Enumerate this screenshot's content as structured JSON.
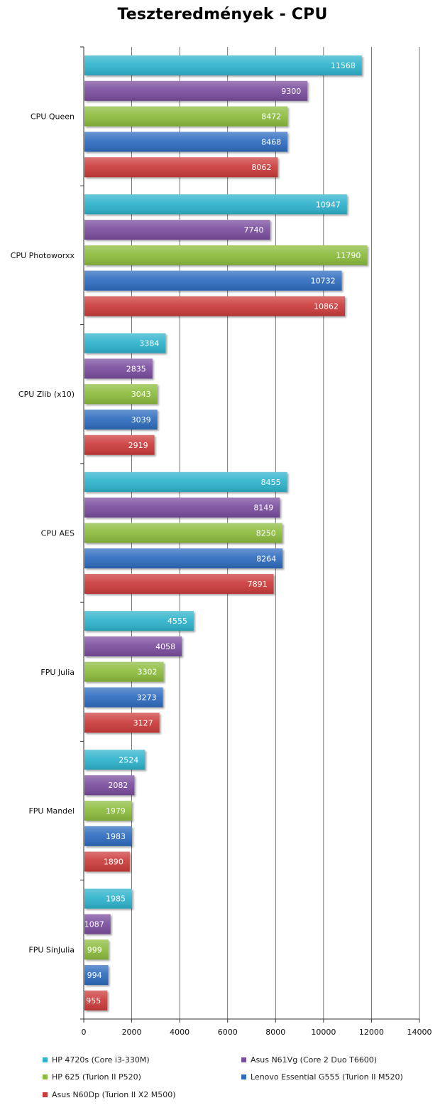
{
  "chart_data": {
    "type": "bar",
    "orientation": "horizontal",
    "title": "Teszteredmények - CPU",
    "categories": [
      "CPU Queen",
      "CPU Photoworxx",
      "CPU Zlib (x10)",
      "CPU AES",
      "FPU Julia",
      "FPU Mandel",
      "FPU SinJulia"
    ],
    "series": [
      {
        "name": "HP 4720s (Core i3-330M)",
        "color": "#2fb3cc",
        "values": [
          11568,
          10947,
          3384,
          8455,
          4555,
          2524,
          1985
        ]
      },
      {
        "name": "Asus N61Vg (Core 2 Duo T6600)",
        "color": "#7a4d9e",
        "values": [
          9300,
          7740,
          2835,
          8149,
          4058,
          2082,
          1087
        ]
      },
      {
        "name": "HP 625 (Turion II P520)",
        "color": "#8cbc3c",
        "values": [
          8472,
          11790,
          3043,
          8250,
          3302,
          1979,
          999
        ]
      },
      {
        "name": "Lenovo Essential G555 (Turion II M520)",
        "color": "#2f6cbf",
        "values": [
          8468,
          10732,
          3039,
          8264,
          3273,
          1983,
          994
        ]
      },
      {
        "name": "Asus N60Dp (Turion II X2 M500)",
        "color": "#cc3b3b",
        "values": [
          8062,
          10862,
          2919,
          7891,
          3127,
          1890,
          955
        ]
      }
    ],
    "xlim": [
      0,
      14000
    ],
    "xticks": [
      0,
      2000,
      4000,
      6000,
      8000,
      10000,
      12000,
      14000
    ],
    "grid": true,
    "legend_position": "bottom"
  }
}
